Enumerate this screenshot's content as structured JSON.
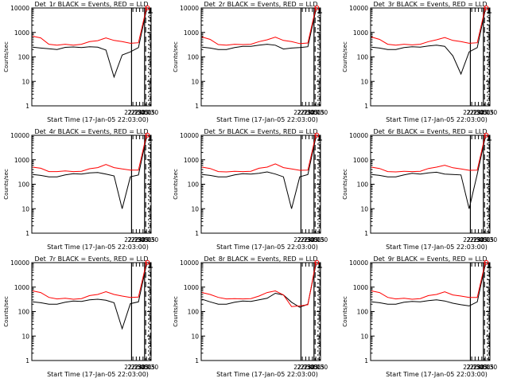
{
  "chart_data": [
    {
      "type": "line",
      "title": "Det_1r BLACK = Events, RED = LLD",
      "series": [
        {
          "name": "Events",
          "color": "#000000",
          "values": [
            250,
            230,
            215,
            200,
            245,
            255,
            240,
            260,
            250,
            190,
            15,
            120,
            160,
            240,
            9000
          ]
        },
        {
          "name": "LLD",
          "color": "#ff0000",
          "values": [
            700,
            600,
            330,
            300,
            330,
            300,
            330,
            420,
            460,
            600,
            470,
            420,
            360,
            380,
            11000
          ]
        }
      ]
    },
    {
      "type": "line",
      "title": "Det_2r BLACK = Events, RED = LLD",
      "series": [
        {
          "name": "Events",
          "color": "#000000",
          "values": [
            250,
            230,
            200,
            200,
            240,
            270,
            270,
            300,
            330,
            300,
            210,
            230,
            240,
            260,
            9000
          ]
        },
        {
          "name": "LLD",
          "color": "#ff0000",
          "values": [
            650,
            520,
            320,
            300,
            330,
            320,
            330,
            420,
            500,
            640,
            470,
            420,
            350,
            370,
            11000
          ]
        }
      ]
    },
    {
      "type": "line",
      "title": "Det_3r BLACK = Events, RED = LLD",
      "series": [
        {
          "name": "Events",
          "color": "#000000",
          "values": [
            250,
            230,
            200,
            200,
            240,
            260,
            250,
            280,
            300,
            270,
            110,
            20,
            160,
            240,
            9000
          ]
        },
        {
          "name": "LLD",
          "color": "#ff0000",
          "values": [
            650,
            520,
            330,
            300,
            330,
            310,
            330,
            420,
            500,
            620,
            470,
            420,
            360,
            380,
            11000
          ]
        }
      ]
    },
    {
      "type": "line",
      "title": "Det_4r BLACK = Events, RED = LLD",
      "series": [
        {
          "name": "Events",
          "color": "#000000",
          "values": [
            250,
            230,
            200,
            200,
            240,
            270,
            260,
            290,
            300,
            260,
            220,
            10,
            200,
            240,
            9000
          ]
        },
        {
          "name": "LLD",
          "color": "#ff0000",
          "values": [
            500,
            450,
            330,
            330,
            350,
            330,
            340,
            430,
            480,
            640,
            480,
            420,
            380,
            380,
            11000
          ]
        }
      ]
    },
    {
      "type": "line",
      "title": "Det_5r BLACK = Events, RED = LLD",
      "series": [
        {
          "name": "Events",
          "color": "#000000",
          "values": [
            250,
            230,
            200,
            200,
            240,
            270,
            260,
            280,
            320,
            260,
            200,
            10,
            200,
            250,
            9000
          ]
        },
        {
          "name": "LLD",
          "color": "#ff0000",
          "values": [
            500,
            440,
            330,
            320,
            340,
            330,
            340,
            450,
            500,
            680,
            480,
            420,
            370,
            380,
            11000
          ]
        }
      ]
    },
    {
      "type": "line",
      "title": "Det_6r BLACK = Events, RED = LLD",
      "series": [
        {
          "name": "Events",
          "color": "#000000",
          "values": [
            250,
            230,
            200,
            200,
            240,
            280,
            260,
            290,
            310,
            260,
            250,
            240,
            10,
            260,
            9000
          ]
        },
        {
          "name": "LLD",
          "color": "#ff0000",
          "values": [
            500,
            440,
            330,
            320,
            340,
            330,
            340,
            440,
            500,
            600,
            470,
            420,
            370,
            380,
            11000
          ]
        }
      ]
    },
    {
      "type": "line",
      "title": "Det_7r BLACK = Events, RED = LLD",
      "series": [
        {
          "name": "Events",
          "color": "#000000",
          "values": [
            250,
            230,
            200,
            200,
            240,
            270,
            260,
            300,
            320,
            290,
            230,
            20,
            210,
            250,
            9000
          ]
        },
        {
          "name": "LLD",
          "color": "#ff0000",
          "values": [
            700,
            600,
            380,
            330,
            350,
            320,
            340,
            450,
            500,
            650,
            500,
            430,
            380,
            390,
            11000
          ]
        }
      ]
    },
    {
      "type": "line",
      "title": "Det_8r BLACK = Events, RED = LLD",
      "series": [
        {
          "name": "Events",
          "color": "#000000",
          "values": [
            320,
            250,
            200,
            200,
            240,
            270,
            260,
            300,
            350,
            560,
            480,
            240,
            150,
            200,
            9000
          ]
        },
        {
          "name": "LLD",
          "color": "#ff0000",
          "values": [
            600,
            500,
            380,
            330,
            340,
            330,
            340,
            430,
            600,
            700,
            480,
            160,
            170,
            190,
            11000
          ]
        }
      ]
    },
    {
      "type": "line",
      "title": "Det_9r BLACK = Events, RED = LLD",
      "series": [
        {
          "name": "Events",
          "color": "#000000",
          "values": [
            250,
            230,
            200,
            200,
            240,
            260,
            250,
            280,
            300,
            270,
            220,
            190,
            170,
            250,
            9000
          ]
        },
        {
          "name": "LLD",
          "color": "#ff0000",
          "values": [
            700,
            600,
            380,
            330,
            350,
            320,
            340,
            450,
            500,
            640,
            480,
            430,
            380,
            380,
            11000
          ]
        }
      ]
    }
  ],
  "shared": {
    "ylabel": "Counts/sec",
    "xlabel": "Start Time (17-Jan-05 22:03:00)",
    "xticks": [
      "22:15",
      "22:30",
      "22:45",
      "23:00",
      "23:15",
      "23:30"
    ],
    "yticks": [
      "1",
      "10",
      "100",
      "1000",
      "10000"
    ],
    "yscale": "log",
    "ylim": [
      1,
      10000
    ]
  }
}
